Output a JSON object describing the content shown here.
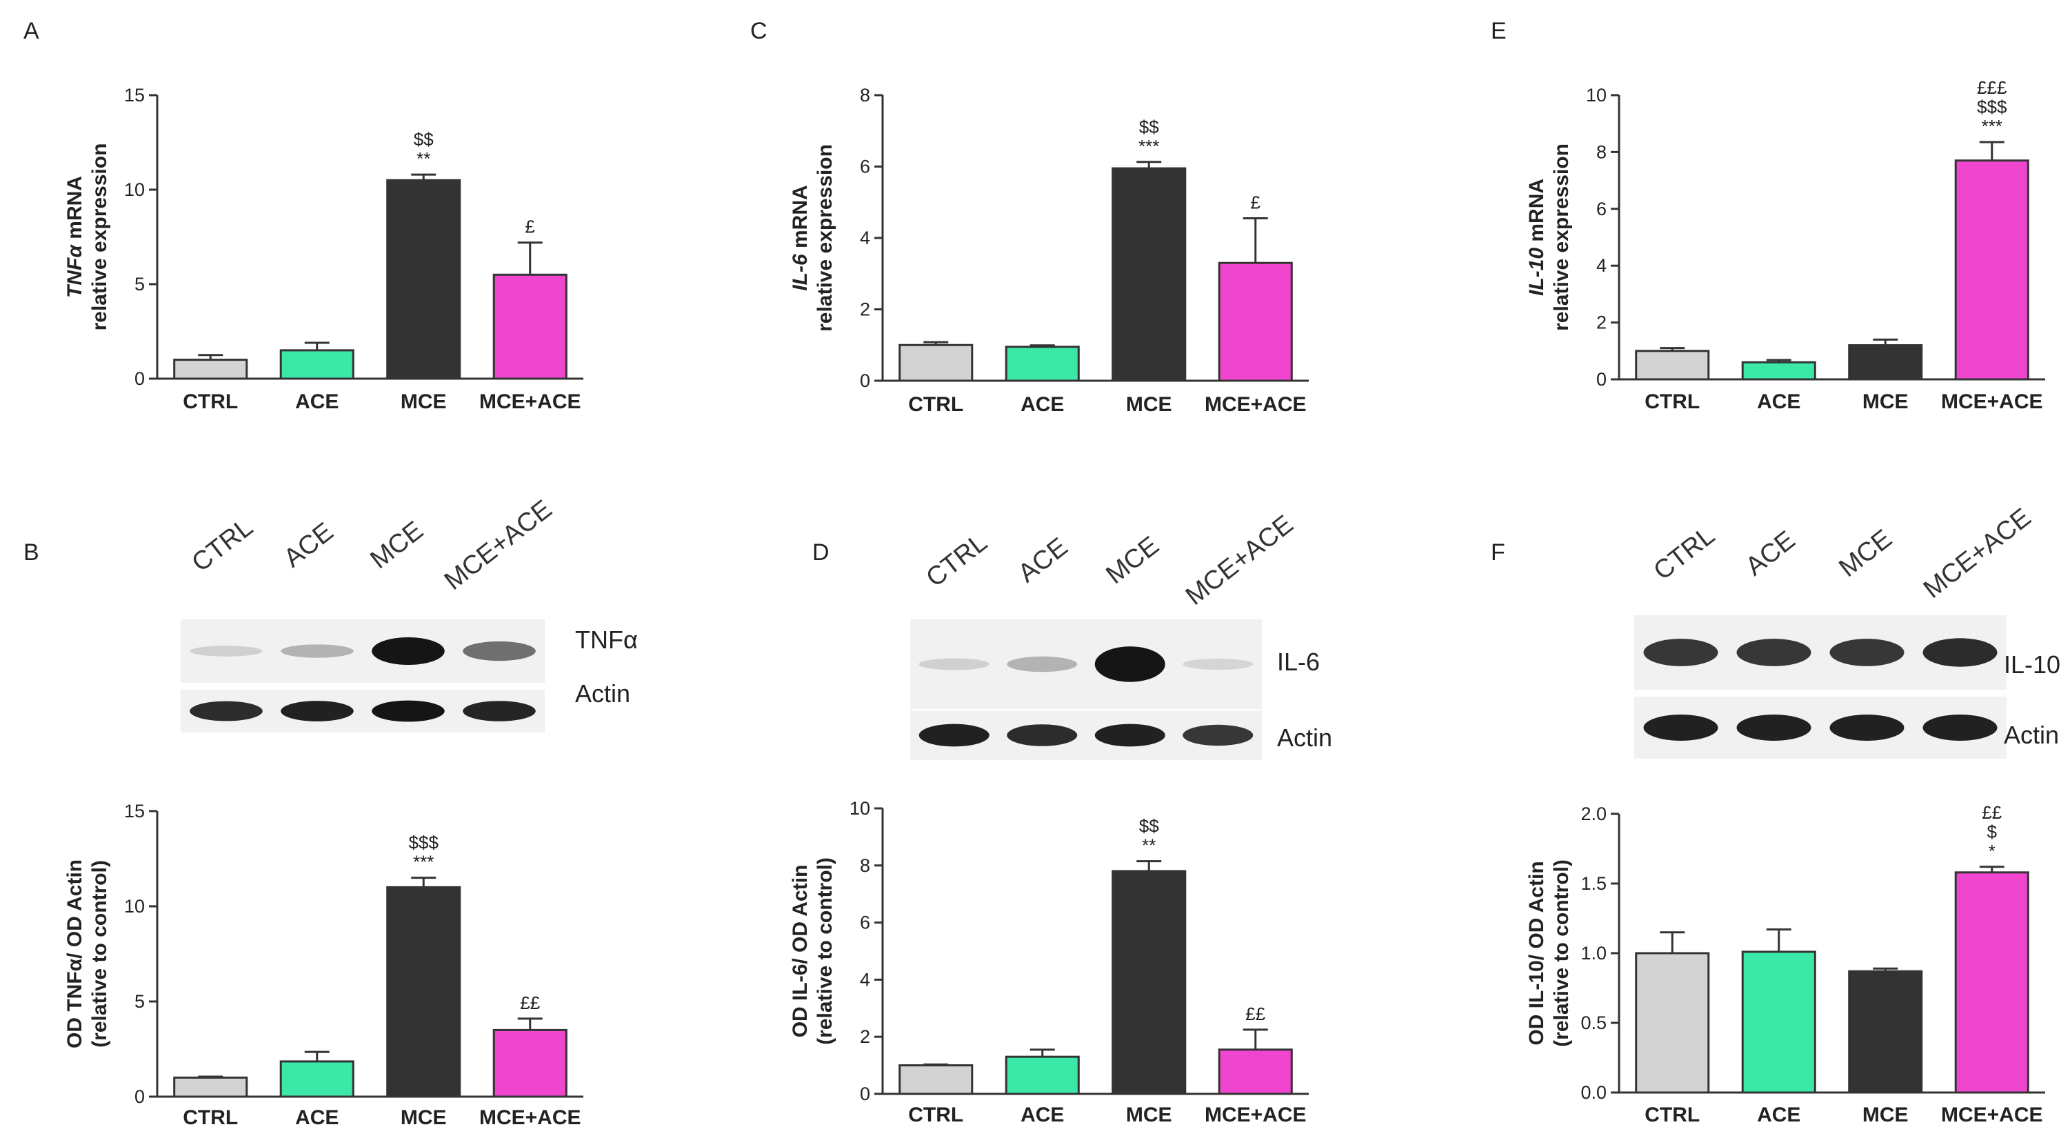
{
  "figure": {
    "colors": {
      "CTRL": "#d3d3d3",
      "ACE": "#3ce8a8",
      "MCE": "#333333",
      "MCE+ACE": "#f046cf",
      "axis": "#333333"
    },
    "blots": [
      {
        "panel": "B",
        "lanes": [
          "CTRL",
          "ACE",
          "MCE",
          "MCE+ACE"
        ],
        "bands": [
          {
            "label": "TNFα",
            "intensity": [
              0.12,
              0.25,
              0.95,
              0.55
            ]
          },
          {
            "label": "Actin",
            "intensity": [
              0.85,
              0.9,
              0.95,
              0.88
            ]
          }
        ]
      },
      {
        "panel": "D",
        "lanes": [
          "CTRL",
          "ACE",
          "MCE",
          "MCE+ACE"
        ],
        "bands": [
          {
            "label": "IL-6",
            "intensity": [
              0.12,
              0.25,
              0.95,
              0.1
            ]
          },
          {
            "label": "Actin",
            "intensity": [
              0.9,
              0.85,
              0.9,
              0.8
            ]
          }
        ]
      },
      {
        "panel": "F",
        "lanes": [
          "CTRL",
          "ACE",
          "MCE",
          "MCE+ACE"
        ],
        "bands": [
          {
            "label": "IL-10",
            "intensity": [
              0.8,
              0.8,
              0.8,
              0.85
            ]
          },
          {
            "label": "Actin",
            "intensity": [
              0.9,
              0.9,
              0.9,
              0.9
            ]
          }
        ]
      }
    ]
  },
  "chart_data": [
    {
      "panel": "A",
      "type": "bar",
      "categories": [
        "CTRL",
        "ACE",
        "MCE",
        "MCE+ACE"
      ],
      "values": [
        1.0,
        1.5,
        10.5,
        5.5
      ],
      "errors": [
        0.25,
        0.4,
        0.3,
        1.7
      ],
      "significance": [
        [],
        [],
        [
          "$$",
          "**"
        ],
        [
          "£"
        ]
      ],
      "ylabel_line1_italic": "TNFα",
      "ylabel_line1_rest": " mRNA",
      "ylabel_line2": "relative expression",
      "ylim": [
        0,
        15
      ],
      "yticks": [
        "0",
        "5",
        "10",
        "15"
      ],
      "ytick_values": [
        0,
        5,
        10,
        15
      ]
    },
    {
      "panel": "C",
      "type": "bar",
      "categories": [
        "CTRL",
        "ACE",
        "MCE",
        "MCE+ACE"
      ],
      "values": [
        1.0,
        0.95,
        5.95,
        3.3
      ],
      "errors": [
        0.08,
        0.04,
        0.18,
        1.25
      ],
      "significance": [
        [],
        [],
        [
          "$$",
          "***"
        ],
        [
          "£"
        ]
      ],
      "ylabel_line1_italic": "IL-6",
      "ylabel_line1_rest": " mRNA",
      "ylabel_line2": "relative expression",
      "ylim": [
        0,
        8
      ],
      "yticks": [
        "0",
        "2",
        "4",
        "6",
        "8"
      ],
      "ytick_values": [
        0,
        2,
        4,
        6,
        8
      ]
    },
    {
      "panel": "E",
      "type": "bar",
      "categories": [
        "CTRL",
        "ACE",
        "MCE",
        "MCE+ACE"
      ],
      "values": [
        1.0,
        0.6,
        1.2,
        7.7
      ],
      "errors": [
        0.1,
        0.08,
        0.2,
        0.65
      ],
      "significance": [
        [],
        [],
        [],
        [
          "£££",
          "$$$",
          "***"
        ]
      ],
      "ylabel_line1_italic": "IL-10",
      "ylabel_line1_rest": " mRNA",
      "ylabel_line2": "relative expression",
      "ylim": [
        0,
        10
      ],
      "yticks": [
        "0",
        "2",
        "4",
        "6",
        "8",
        "10"
      ],
      "ytick_values": [
        0,
        2,
        4,
        6,
        8,
        10
      ]
    },
    {
      "panel": "B",
      "type": "bar",
      "categories": [
        "CTRL",
        "ACE",
        "MCE",
        "MCE+ACE"
      ],
      "values": [
        1.0,
        1.85,
        11.0,
        3.5
      ],
      "errors": [
        0.05,
        0.5,
        0.5,
        0.6
      ],
      "significance": [
        [],
        [],
        [
          "$$$",
          "***"
        ],
        [
          "££"
        ]
      ],
      "ylabel_line1_italic": "",
      "ylabel_line1_rest": "OD TNFα/ OD Actin",
      "ylabel_line2": "(relative to control)",
      "ylim": [
        0,
        15
      ],
      "yticks": [
        "0",
        "5",
        "10",
        "15"
      ],
      "ytick_values": [
        0,
        5,
        10,
        15
      ]
    },
    {
      "panel": "D",
      "type": "bar",
      "categories": [
        "CTRL",
        "ACE",
        "MCE",
        "MCE+ACE"
      ],
      "values": [
        1.0,
        1.3,
        7.8,
        1.55
      ],
      "errors": [
        0.03,
        0.25,
        0.35,
        0.7
      ],
      "significance": [
        [],
        [],
        [
          "$$",
          "**"
        ],
        [
          "££"
        ]
      ],
      "ylabel_line1_italic": "",
      "ylabel_line1_rest": "OD IL-6/ OD Actin",
      "ylabel_line2": "(relative to control)",
      "ylim": [
        0,
        10
      ],
      "yticks": [
        "0",
        "2",
        "4",
        "6",
        "8",
        "10"
      ],
      "ytick_values": [
        0,
        2,
        4,
        6,
        8,
        10
      ]
    },
    {
      "panel": "F",
      "type": "bar",
      "categories": [
        "CTRL",
        "ACE",
        "MCE",
        "MCE+ACE"
      ],
      "values": [
        1.0,
        1.01,
        0.87,
        1.58
      ],
      "errors": [
        0.15,
        0.16,
        0.02,
        0.04
      ],
      "significance": [
        [],
        [],
        [],
        [
          "££",
          "$",
          "*"
        ]
      ],
      "ylabel_line1_italic": "",
      "ylabel_line1_rest": "OD IL-10/ OD Actin",
      "ylabel_line2": "(relative to control)",
      "ylim": [
        0,
        2.0
      ],
      "yticks": [
        "0.0",
        "0.5",
        "1.0",
        "1.5",
        "2.0"
      ],
      "ytick_values": [
        0,
        0.5,
        1.0,
        1.5,
        2.0
      ]
    }
  ]
}
